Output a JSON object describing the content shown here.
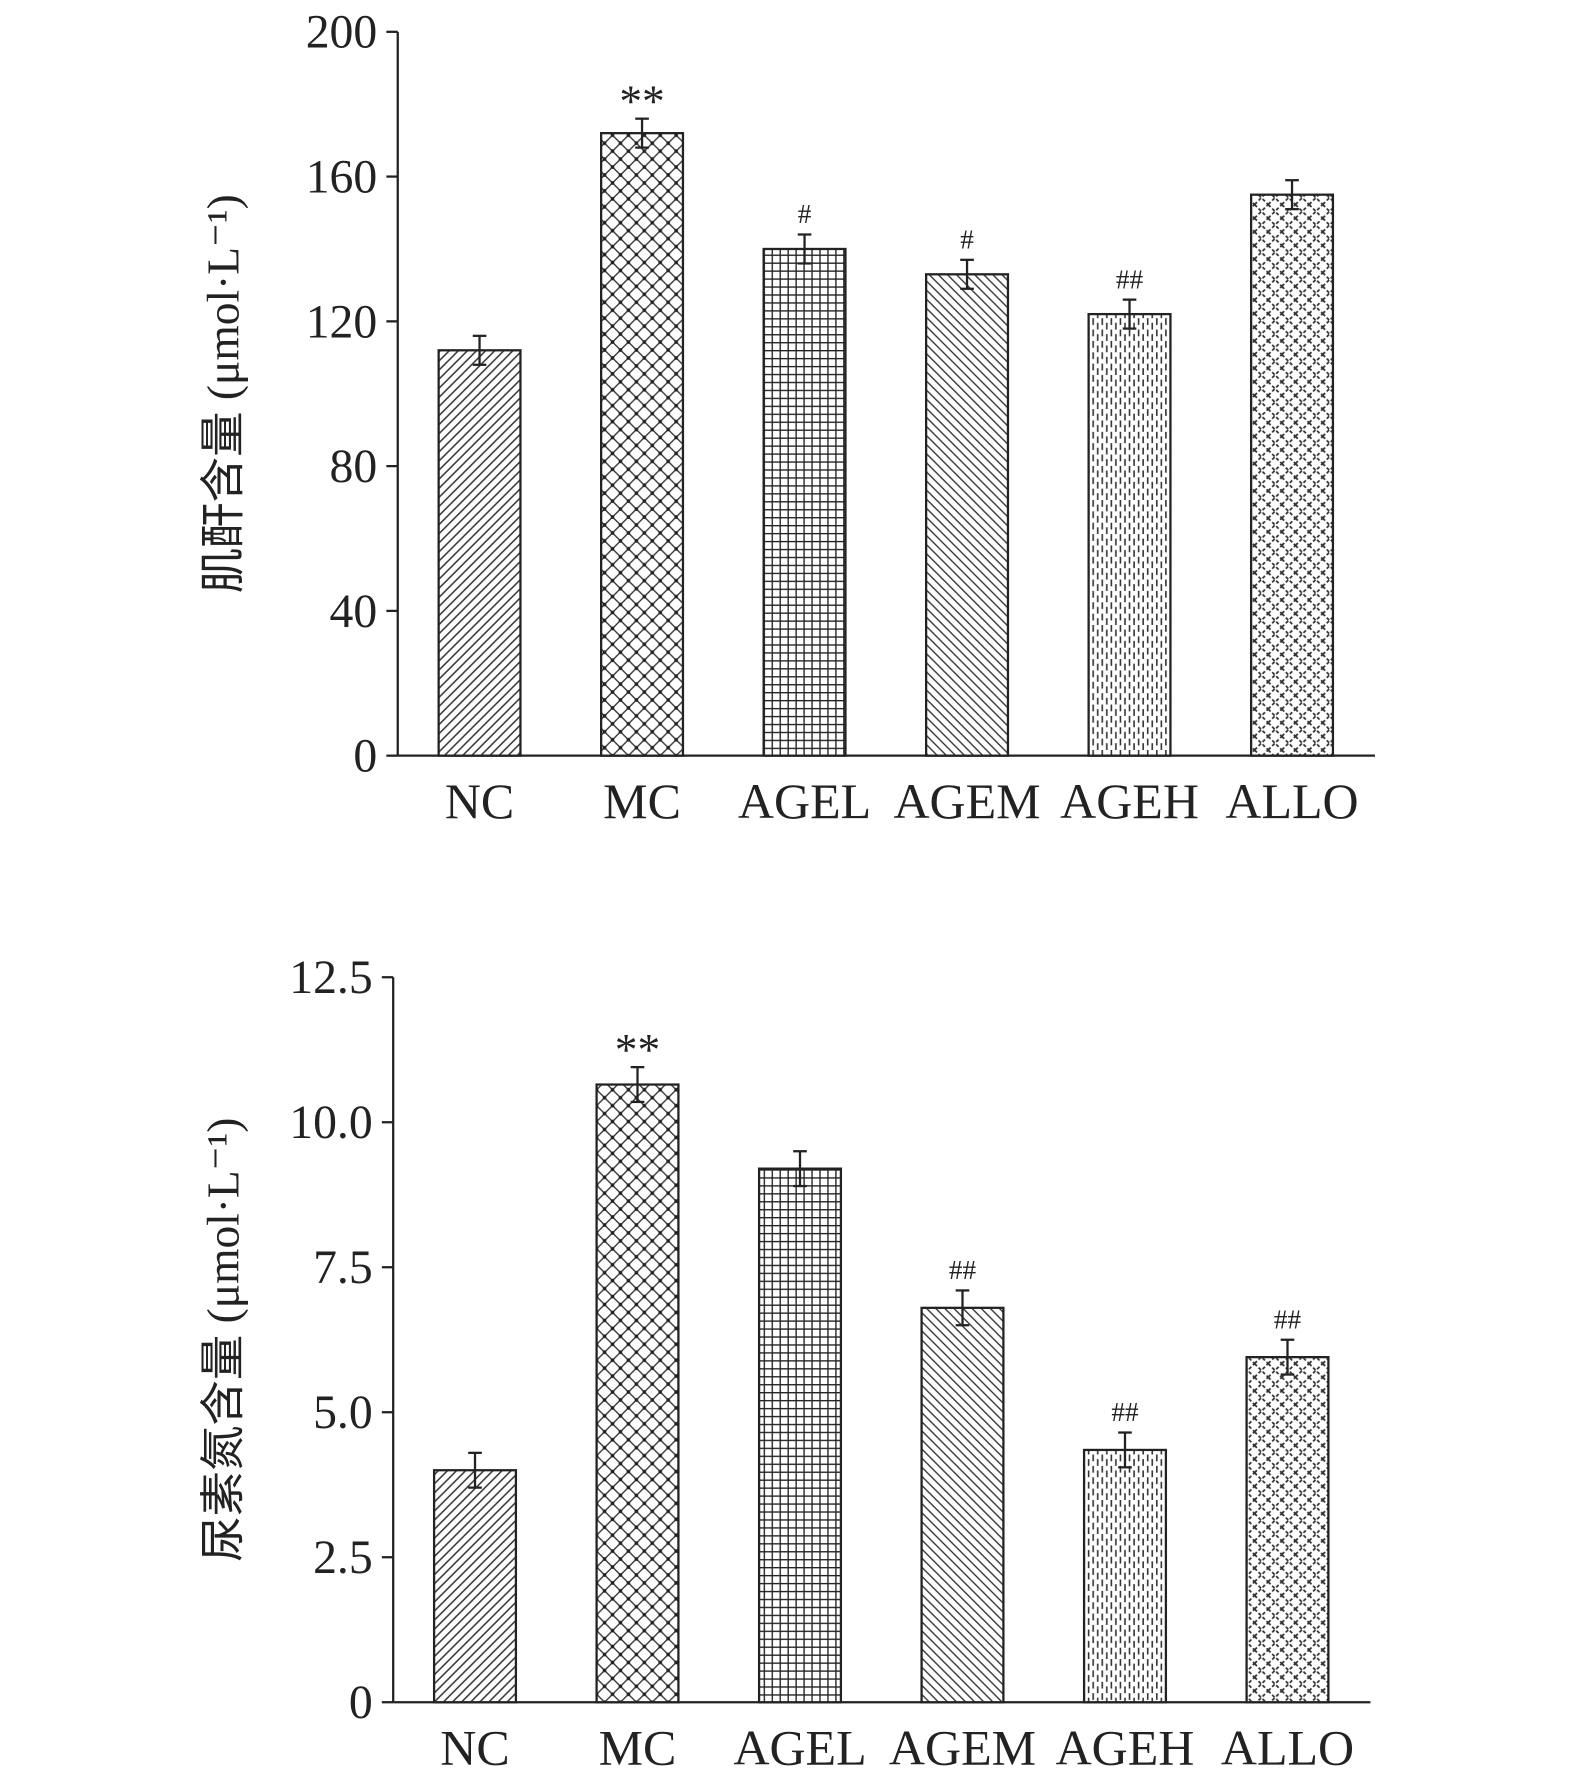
{
  "chart_data": [
    {
      "type": "bar",
      "y_label": "肌酐含量 (μmol·L⁻¹)",
      "categories": [
        "NC",
        "MC",
        "AGEL",
        "AGEM",
        "AGEH",
        "ALLO"
      ],
      "values": [
        112,
        172,
        140,
        133,
        122,
        155
      ],
      "errors": [
        4,
        4,
        4,
        4,
        4,
        4
      ],
      "annotations": [
        null,
        "**",
        "#",
        "#",
        "##",
        null
      ],
      "color": "#222222",
      "ylim": [
        0,
        200
      ],
      "yticks": [
        0,
        40,
        80,
        120,
        160,
        200
      ]
    },
    {
      "type": "bar",
      "y_label": "尿素氮含量 (μmol·L⁻¹)",
      "categories": [
        "NC",
        "MC",
        "AGEL",
        "AGEM",
        "AGEH",
        "ALLO"
      ],
      "values": [
        4.0,
        10.65,
        9.2,
        6.8,
        4.35,
        5.95
      ],
      "errors": [
        0.3,
        0.3,
        0.3,
        0.3,
        0.3,
        0.3
      ],
      "annotations": [
        null,
        "**",
        null,
        "##",
        "##",
        "##"
      ],
      "color": "#222222",
      "ylim": [
        0,
        12.5
      ],
      "yticks": [
        0,
        2.5,
        {
          "value": 5,
          "label": "5.0"
        },
        7.5,
        {
          "value": 10,
          "label": "10.0"
        },
        12.5
      ]
    }
  ]
}
